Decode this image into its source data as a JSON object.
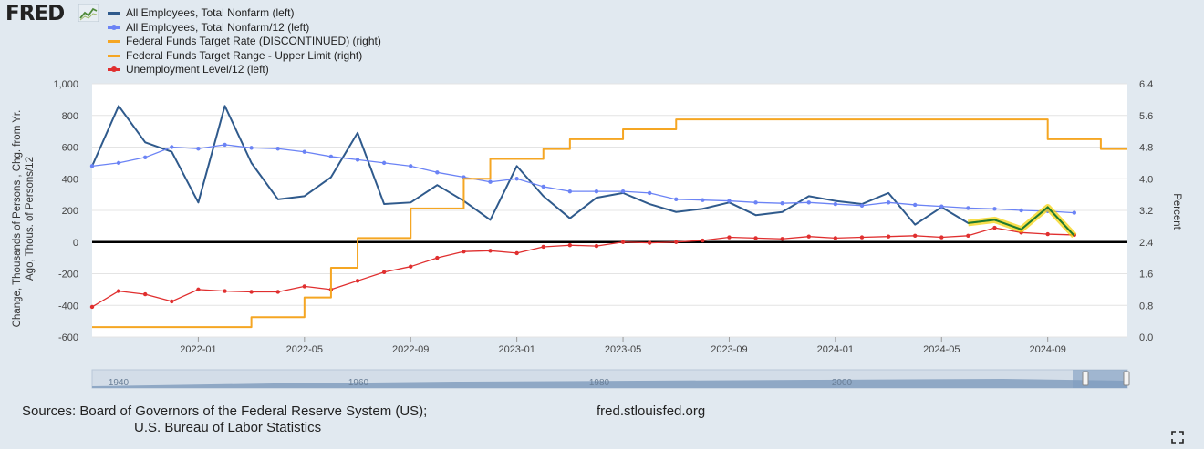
{
  "logo": {
    "text": "FRED",
    "mark": "fred-graph-logo-icon"
  },
  "legend": [
    {
      "label": "All Employees, Total Nonfarm (left)",
      "color": "#2f5a8c",
      "marker": "none"
    },
    {
      "label": "All Employees, Total Nonfarm/12 (left)",
      "color": "#6b83f5",
      "marker": "dot"
    },
    {
      "label": "Federal Funds Target Rate (DISCONTINUED) (right)",
      "color": "#f5a623",
      "marker": "none"
    },
    {
      "label": "Federal Funds Target Range - Upper Limit (right)",
      "color": "#f5a623",
      "marker": "none"
    },
    {
      "label": "Unemployment Level/12 (left)",
      "color": "#e02f2f",
      "marker": "dot"
    }
  ],
  "chart_data": {
    "type": "line",
    "left_axis": {
      "label": "Change, Thousands of Persons , Chg. from Yr. Ago, Thous. of Persons/12",
      "ylim": [
        -600,
        1000
      ],
      "ticks": [
        "1,000",
        "800",
        "600",
        "400",
        "200",
        "0",
        "-200",
        "-400",
        "-600"
      ]
    },
    "right_axis": {
      "label": "Percent",
      "ylim": [
        0.0,
        6.4
      ],
      "ticks": [
        "6.4",
        "5.6",
        "4.8",
        "4.0",
        "3.2",
        "2.4",
        "1.6",
        "0.8",
        "0.0"
      ]
    },
    "x_axis": {
      "start": "2021-09",
      "end": "2024-12",
      "ticks": [
        "2022-01",
        "2022-05",
        "2022-09",
        "2023-01",
        "2023-05",
        "2023-09",
        "2024-01",
        "2024-05",
        "2024-09"
      ]
    },
    "series": [
      {
        "name": "All Employees, Total Nonfarm (left)",
        "axis": "left",
        "color": "#2f5a8c",
        "x": [
          "2021-09",
          "2021-10",
          "2021-11",
          "2021-12",
          "2022-01",
          "2022-02",
          "2022-03",
          "2022-04",
          "2022-05",
          "2022-06",
          "2022-07",
          "2022-08",
          "2022-09",
          "2022-10",
          "2022-11",
          "2022-12",
          "2023-01",
          "2023-02",
          "2023-03",
          "2023-04",
          "2023-05",
          "2023-06",
          "2023-07",
          "2023-08",
          "2023-09",
          "2023-10",
          "2023-11",
          "2023-12",
          "2024-01",
          "2024-02",
          "2024-03",
          "2024-04",
          "2024-05",
          "2024-06",
          "2024-07",
          "2024-08",
          "2024-09",
          "2024-10"
        ],
        "y": [
          480,
          860,
          630,
          570,
          250,
          860,
          500,
          270,
          290,
          410,
          690,
          240,
          250,
          360,
          260,
          140,
          480,
          290,
          150,
          280,
          310,
          240,
          190,
          210,
          250,
          170,
          190,
          290,
          260,
          240,
          310,
          110,
          220,
          120,
          140,
          80,
          220,
          40
        ]
      },
      {
        "name": "All Employees, Total Nonfarm/12 (left)",
        "axis": "left",
        "color": "#6b83f5",
        "x": [
          "2021-09",
          "2021-10",
          "2021-11",
          "2021-12",
          "2022-01",
          "2022-02",
          "2022-03",
          "2022-04",
          "2022-05",
          "2022-06",
          "2022-07",
          "2022-08",
          "2022-09",
          "2022-10",
          "2022-11",
          "2022-12",
          "2023-01",
          "2023-02",
          "2023-03",
          "2023-04",
          "2023-05",
          "2023-06",
          "2023-07",
          "2023-08",
          "2023-09",
          "2023-10",
          "2023-11",
          "2023-12",
          "2024-01",
          "2024-02",
          "2024-03",
          "2024-04",
          "2024-05",
          "2024-06",
          "2024-07",
          "2024-08",
          "2024-09",
          "2024-10"
        ],
        "y": [
          480,
          500,
          535,
          600,
          590,
          615,
          595,
          590,
          570,
          540,
          520,
          500,
          480,
          440,
          410,
          380,
          400,
          350,
          320,
          320,
          320,
          310,
          270,
          265,
          260,
          250,
          245,
          250,
          240,
          230,
          250,
          235,
          225,
          215,
          210,
          200,
          195,
          185
        ]
      },
      {
        "name": "Unemployment Level/12 (left)",
        "axis": "left",
        "color": "#e02f2f",
        "x": [
          "2021-09",
          "2021-10",
          "2021-11",
          "2021-12",
          "2022-01",
          "2022-02",
          "2022-03",
          "2022-04",
          "2022-05",
          "2022-06",
          "2022-07",
          "2022-08",
          "2022-09",
          "2022-10",
          "2022-11",
          "2022-12",
          "2023-01",
          "2023-02",
          "2023-03",
          "2023-04",
          "2023-05",
          "2023-06",
          "2023-07",
          "2023-08",
          "2023-09",
          "2023-10",
          "2023-11",
          "2023-12",
          "2024-01",
          "2024-02",
          "2024-03",
          "2024-04",
          "2024-05",
          "2024-06",
          "2024-07",
          "2024-08",
          "2024-09",
          "2024-10"
        ],
        "y": [
          -410,
          -310,
          -330,
          -375,
          -300,
          -310,
          -315,
          -315,
          -280,
          -300,
          -245,
          -190,
          -155,
          -100,
          -60,
          -55,
          -70,
          -30,
          -20,
          -25,
          0,
          -5,
          0,
          10,
          30,
          25,
          20,
          35,
          25,
          30,
          35,
          40,
          30,
          40,
          90,
          60,
          50,
          45
        ]
      },
      {
        "name": "Federal Funds Target Range - Upper Limit (right)",
        "axis": "right",
        "color": "#f5a623",
        "step": true,
        "x": [
          "2021-09",
          "2022-03",
          "2022-05",
          "2022-06",
          "2022-07",
          "2022-09",
          "2022-11",
          "2022-12",
          "2023-02",
          "2023-03",
          "2023-05",
          "2023-07",
          "2024-09",
          "2024-11",
          "2024-12"
        ],
        "y": [
          0.25,
          0.5,
          1.0,
          1.75,
          2.5,
          3.25,
          4.0,
          4.5,
          4.75,
          5.0,
          5.25,
          5.5,
          5.0,
          4.75,
          4.75
        ]
      }
    ],
    "zero_line": 0,
    "navigator": {
      "ticks": [
        "1940",
        "1960",
        "1980",
        "2000"
      ]
    }
  },
  "sources": {
    "line1": "Sources: Board of Governors of the Federal Reserve System (US);",
    "line2": "U.S. Bureau of Labor Statistics",
    "site": "fred.stlouisfed.org"
  }
}
